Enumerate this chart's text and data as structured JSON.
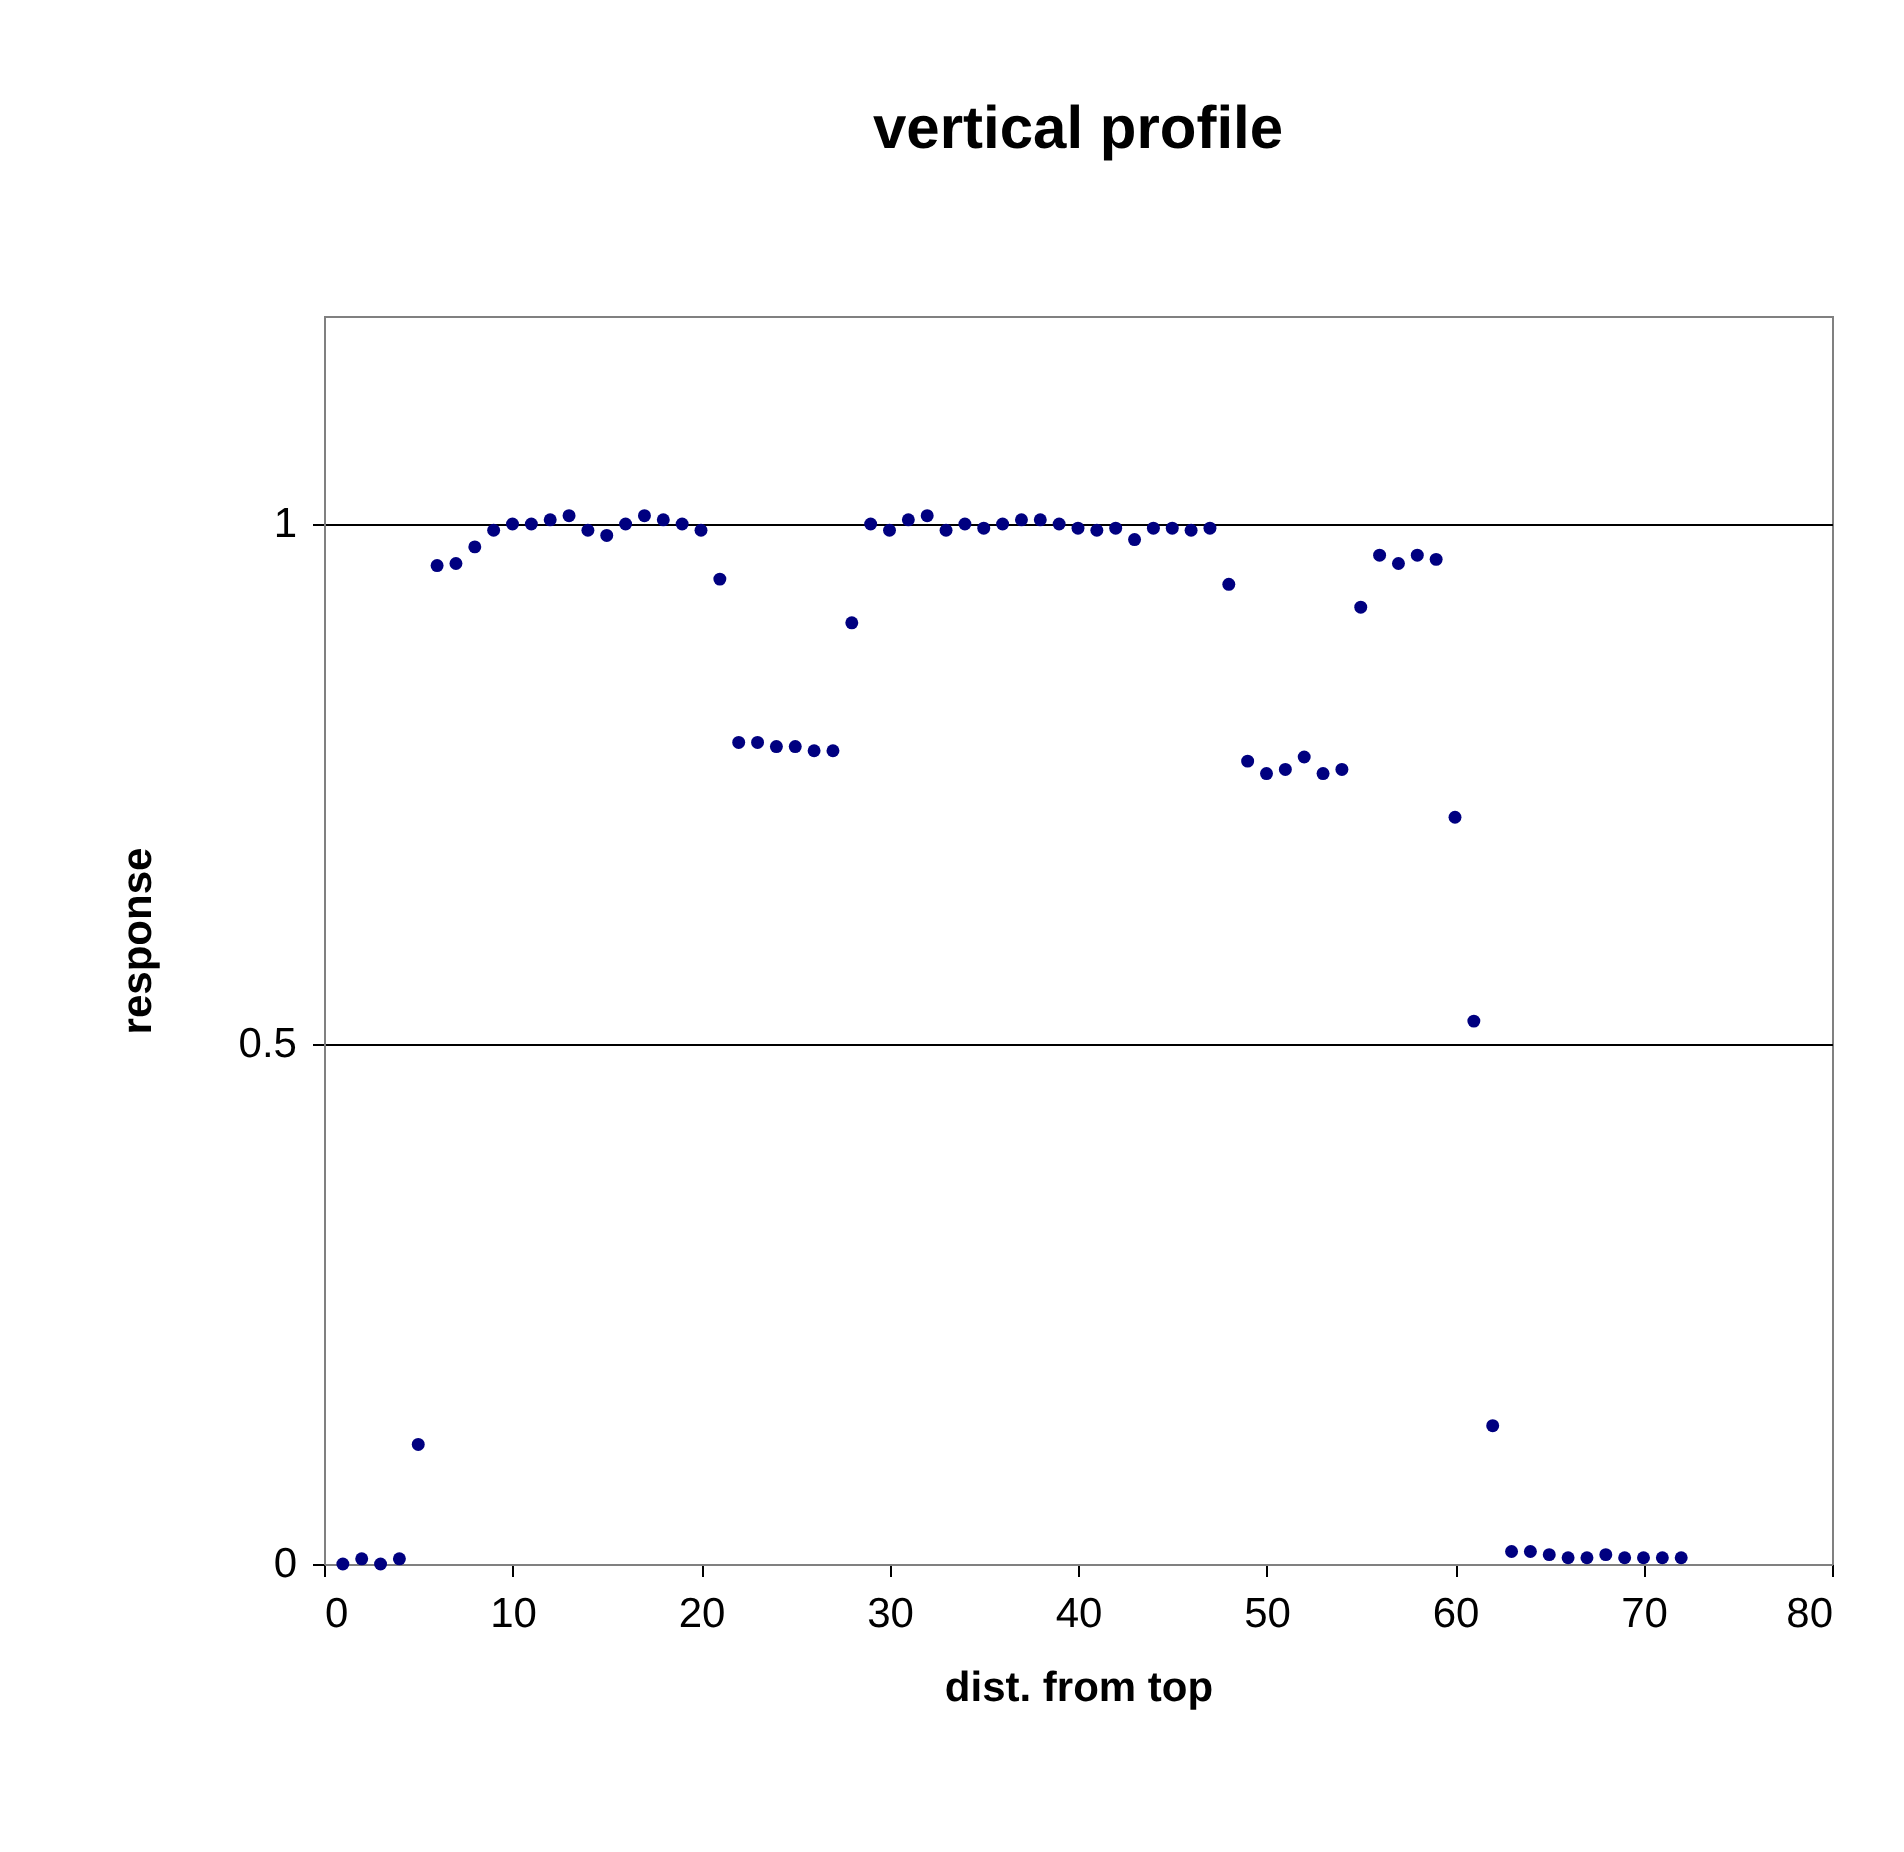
{
  "chart_data": {
    "type": "scatter",
    "title": "vertical profile",
    "xlabel": "dist. from top",
    "ylabel": "response",
    "x": [
      1,
      2,
      3,
      4,
      5,
      6,
      7,
      8,
      9,
      10,
      11,
      12,
      13,
      14,
      15,
      16,
      17,
      18,
      19,
      20,
      21,
      22,
      23,
      24,
      25,
      26,
      27,
      28,
      29,
      30,
      31,
      32,
      33,
      34,
      35,
      36,
      37,
      38,
      39,
      40,
      41,
      42,
      43,
      44,
      45,
      46,
      47,
      48,
      49,
      50,
      51,
      52,
      53,
      54,
      55,
      56,
      57,
      58,
      59,
      60,
      61,
      62,
      63,
      64,
      65,
      66,
      67,
      68,
      69,
      70,
      71,
      72
    ],
    "series": [
      {
        "color": "#000080",
        "values": [
          0.0,
          0.005,
          0.0,
          0.005,
          0.115,
          0.96,
          0.962,
          0.978,
          0.994,
          1.0,
          1.0,
          1.004,
          1.008,
          0.994,
          0.989,
          1.0,
          1.008,
          1.004,
          1.0,
          0.994,
          0.947,
          0.79,
          0.79,
          0.786,
          0.786,
          0.782,
          0.782,
          0.905,
          1.0,
          0.994,
          1.004,
          1.008,
          0.994,
          1.0,
          0.996,
          1.0,
          1.004,
          1.004,
          1.0,
          0.996,
          0.994,
          0.996,
          0.985,
          0.996,
          0.996,
          0.994,
          0.996,
          0.942,
          0.772,
          0.76,
          0.764,
          0.776,
          0.76,
          0.764,
          0.92,
          0.97,
          0.962,
          0.97,
          0.966,
          0.718,
          0.522,
          0.133,
          0.012,
          0.012,
          0.009,
          0.006,
          0.006,
          0.009,
          0.006,
          0.006,
          0.006,
          0.006
        ]
      }
    ],
    "xlim": [
      0,
      80
    ],
    "xticks": [
      0,
      10,
      20,
      30,
      40,
      50,
      60,
      70,
      80
    ],
    "ylim": [
      0,
      1.2
    ],
    "yticks": [
      0,
      0.5,
      1
    ],
    "grid": "y",
    "marker": "circle"
  }
}
